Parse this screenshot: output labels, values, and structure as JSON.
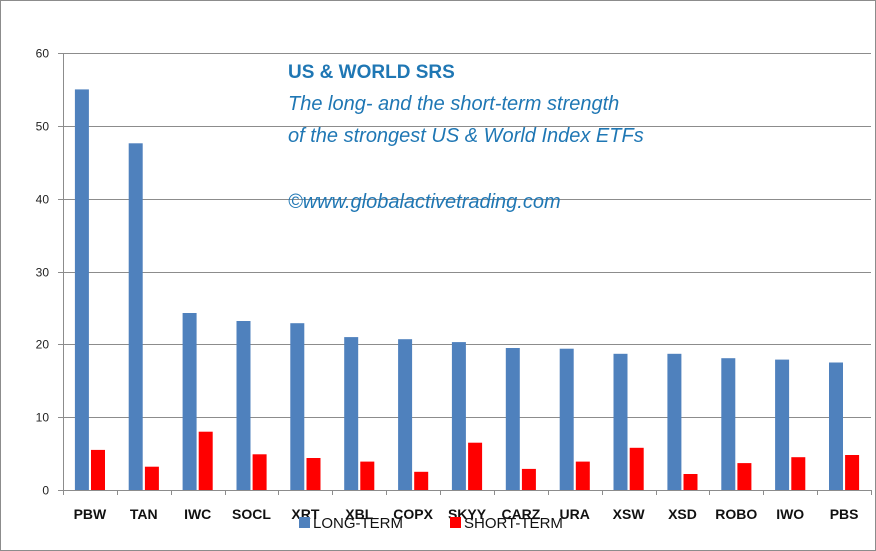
{
  "chart_data": {
    "type": "bar",
    "title": "US & WORLD SRS",
    "subtitle_lines": [
      "The long- and the short-term strength",
      "of the  strongest  US & World Index ETFs"
    ],
    "annotation": "©www.globalactivetrading.com",
    "categories": [
      "PBW",
      "TAN",
      "IWC",
      "SOCL",
      "XRT",
      "XBL",
      "COPX",
      "SKYY",
      "CARZ",
      "URA",
      "XSW",
      "XSD",
      "ROBO",
      "IWO",
      "PBS"
    ],
    "series": [
      {
        "name": "LONG-TERM",
        "color": "#4f81bd",
        "values": [
          55.0,
          47.6,
          24.3,
          23.2,
          22.9,
          21.0,
          20.7,
          20.3,
          19.5,
          19.4,
          18.7,
          18.7,
          18.1,
          17.9,
          17.5
        ]
      },
      {
        "name": "SHORT-TERM",
        "color": "#ff0000",
        "values": [
          5.5,
          3.2,
          8.0,
          4.9,
          4.4,
          3.9,
          2.5,
          6.5,
          2.9,
          3.9,
          5.8,
          2.2,
          3.7,
          4.5,
          4.8
        ]
      }
    ],
    "ylim": [
      0,
      60
    ],
    "yticks": [
      0,
      10,
      20,
      30,
      40,
      50,
      60
    ],
    "grid": true,
    "legend_position": "bottom"
  }
}
